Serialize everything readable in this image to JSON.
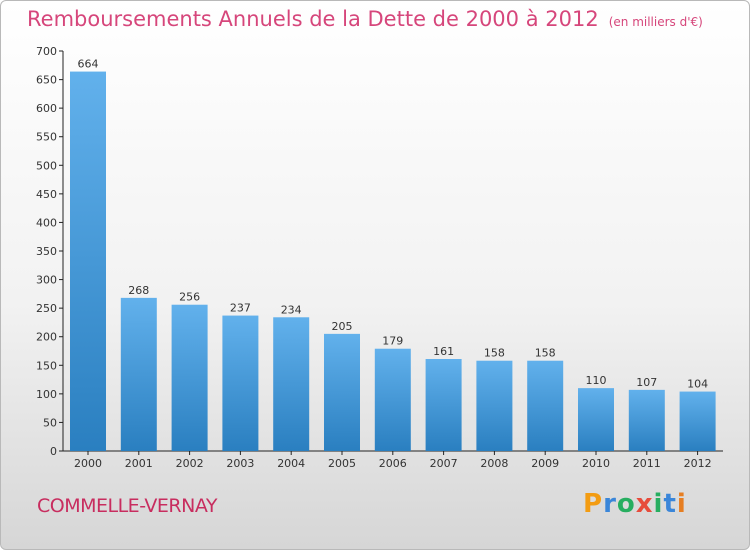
{
  "title": "Remboursements Annuels de la Dette de 2000 à 2012",
  "unit": "(en milliers d'€)",
  "commune": "COMMELLE-VERNAY",
  "logo": {
    "letters": [
      "P",
      "r",
      "o",
      "x",
      "i",
      "t",
      "i"
    ],
    "colors": [
      "#f39c12",
      "#3a86d9",
      "#27ae60",
      "#e74c3c",
      "#27ae60",
      "#3a86d9",
      "#e67e22"
    ]
  },
  "colors": {
    "bar_top": "#62b1ec",
    "bar_bottom": "#2a7fc0",
    "axis": "#222222",
    "gridline": "#cfcfcf"
  },
  "chart_data": {
    "type": "bar",
    "title": "Remboursements Annuels de la Dette de 2000 à 2012",
    "subtitle": "(en milliers d'€)",
    "categories": [
      "2000",
      "2001",
      "2002",
      "2003",
      "2004",
      "2005",
      "2006",
      "2007",
      "2008",
      "2009",
      "2010",
      "2011",
      "2012"
    ],
    "values": [
      664,
      268,
      256,
      237,
      234,
      205,
      179,
      161,
      158,
      158,
      110,
      107,
      104
    ],
    "ylim": [
      0,
      700
    ],
    "yticks": [
      0,
      50,
      100,
      150,
      200,
      250,
      300,
      350,
      400,
      450,
      500,
      550,
      600,
      650,
      700
    ],
    "xlabel": "",
    "ylabel": "",
    "grid": false,
    "legend": "none"
  }
}
